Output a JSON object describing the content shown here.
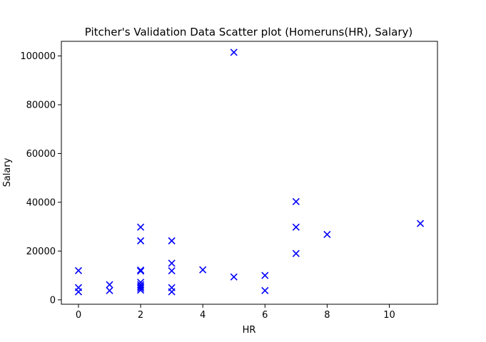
{
  "chart_data": {
    "type": "scatter",
    "title": "Pitcher's Validation Data Scatter plot (Homeruns(HR), Salary)",
    "xlabel": "HR",
    "ylabel": "Salary",
    "xlim": [
      -0.55,
      11.55
    ],
    "ylim": [
      -1800,
      106000
    ],
    "xticks": [
      0,
      2,
      4,
      6,
      8,
      10
    ],
    "yticks": [
      0,
      20000,
      40000,
      60000,
      80000,
      100000
    ],
    "grid": false,
    "legend": "none",
    "marker": "x",
    "color": "#0000ff",
    "series": [
      {
        "points": [
          [
            0,
            12000
          ],
          [
            0,
            5000
          ],
          [
            0,
            3300
          ],
          [
            1,
            6200
          ],
          [
            1,
            3800
          ],
          [
            2,
            29800
          ],
          [
            2,
            24200
          ],
          [
            2,
            12200
          ],
          [
            2,
            11800
          ],
          [
            2,
            7200
          ],
          [
            2,
            6200
          ],
          [
            2,
            5500
          ],
          [
            2,
            4800
          ],
          [
            2,
            4000
          ],
          [
            3,
            24200
          ],
          [
            3,
            15000
          ],
          [
            3,
            11900
          ],
          [
            3,
            5000
          ],
          [
            3,
            3300
          ],
          [
            4,
            12300
          ],
          [
            5,
            101500
          ],
          [
            5,
            9400
          ],
          [
            6,
            10000
          ],
          [
            6,
            3800
          ],
          [
            7,
            40300
          ],
          [
            7,
            29800
          ],
          [
            7,
            19000
          ],
          [
            8,
            26800
          ],
          [
            11,
            31300
          ]
        ]
      }
    ]
  }
}
